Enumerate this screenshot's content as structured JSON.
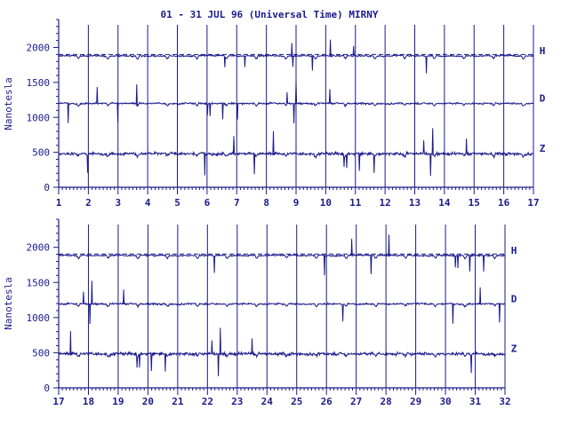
{
  "chart_data": {
    "type": "line",
    "title": "01 - 31 JUL 96 (Universal Time) MIRNY",
    "ylabel": "Nanotesla",
    "line_color": "#1a1a8c",
    "panels": [
      {
        "xlim": [
          1,
          17
        ],
        "ylim": [
          0,
          2400
        ],
        "x_ticks": [
          "1",
          "2",
          "3",
          "4",
          "5",
          "6",
          "7",
          "8",
          "9",
          "10",
          "11",
          "12",
          "13",
          "14",
          "15",
          "16",
          "17"
        ],
        "y_ticks": [
          0,
          500,
          1000,
          1500,
          2000
        ],
        "y_tick_labels": [
          "0",
          "500",
          "1000",
          "1500",
          "2000"
        ],
        "series": [
          {
            "name": "H",
            "baseline": 1880
          },
          {
            "name": "D",
            "baseline": 1200
          },
          {
            "name": "Z",
            "baseline": 480
          }
        ]
      },
      {
        "xlim": [
          17,
          32
        ],
        "ylim": [
          0,
          2400
        ],
        "x_ticks": [
          "17",
          "18",
          "19",
          "20",
          "21",
          "22",
          "23",
          "24",
          "25",
          "26",
          "27",
          "28",
          "29",
          "30",
          "31",
          "32"
        ],
        "y_ticks": [
          0,
          500,
          1000,
          1500,
          2000
        ],
        "y_tick_labels": [
          "0",
          "500",
          "1000",
          "1500",
          "2000"
        ],
        "series": [
          {
            "name": "H",
            "baseline": 1885
          },
          {
            "name": "D",
            "baseline": 1195
          },
          {
            "name": "Z",
            "baseline": 485
          }
        ]
      }
    ]
  }
}
